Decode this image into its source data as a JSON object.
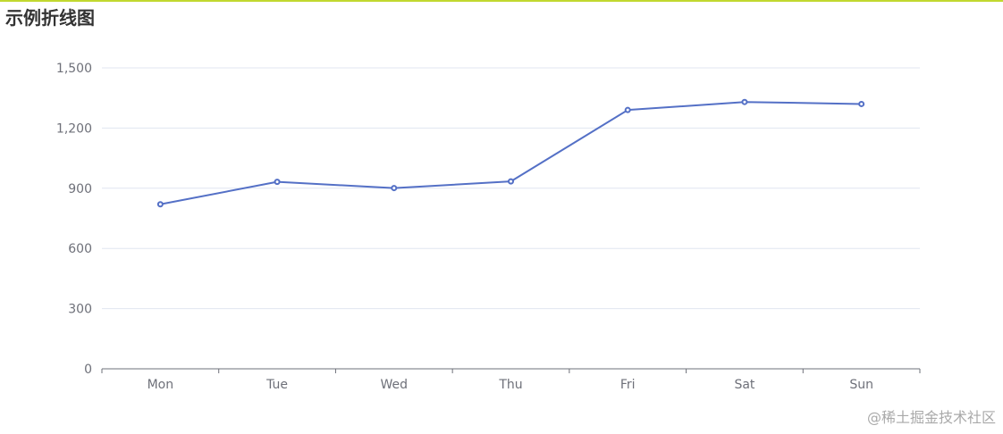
{
  "colors": {
    "accent": "#c1d82f",
    "series": "#5470c6",
    "axis": "#6e7079",
    "grid": "#e0e6f1",
    "title": "#333333",
    "watermark": "#a9a9a9"
  },
  "watermark": "@稀土掘金技术社区",
  "chart_data": {
    "type": "line",
    "title": "示例折线图",
    "xlabel": "",
    "ylabel": "",
    "categories": [
      "Mon",
      "Tue",
      "Wed",
      "Thu",
      "Fri",
      "Sat",
      "Sun"
    ],
    "series": [
      {
        "values": [
          820,
          932,
          901,
          934,
          1290,
          1330,
          1320
        ]
      }
    ],
    "ylim": [
      0,
      1500
    ],
    "yticks": [
      0,
      300,
      600,
      900,
      1200,
      1500
    ],
    "ytick_labels": [
      "0",
      "300",
      "600",
      "900",
      "1,200",
      "1,500"
    ],
    "grid": true,
    "legend": "none"
  }
}
